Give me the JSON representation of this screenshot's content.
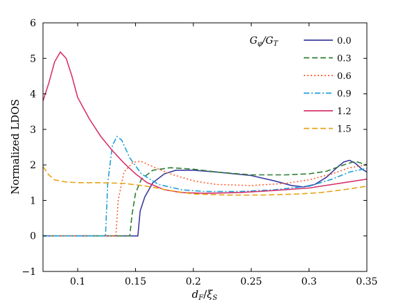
{
  "chart_data": {
    "type": "line",
    "title": "",
    "xlabel": "d_F / ξ_S",
    "ylabel": "Normalized LDOS",
    "xlim": [
      0.07,
      0.35
    ],
    "ylim": [
      -1,
      6
    ],
    "xticks": [
      0.1,
      0.15,
      0.2,
      0.25,
      0.3,
      0.35
    ],
    "xtick_labels": [
      "0.1",
      "0.15",
      "0.2",
      "0.25",
      "0.3",
      "0.35"
    ],
    "yticks": [
      -1,
      0,
      1,
      2,
      3,
      4,
      5,
      6
    ],
    "ytick_labels": [
      "−1",
      "0",
      "1",
      "2",
      "3",
      "4",
      "5",
      "6"
    ],
    "grid": false,
    "legend_title": "G_φ/G_T",
    "legend_position": "top-right",
    "series": [
      {
        "name": "0.0",
        "color": "#3a3aa0",
        "dash": "solid",
        "x": [
          0.07,
          0.152,
          0.154,
          0.158,
          0.165,
          0.175,
          0.185,
          0.2,
          0.22,
          0.25,
          0.27,
          0.285,
          0.295,
          0.305,
          0.315,
          0.325,
          0.33,
          0.335,
          0.34,
          0.345,
          0.35
        ],
        "y": [
          0,
          0,
          0.7,
          1.1,
          1.5,
          1.75,
          1.85,
          1.85,
          1.8,
          1.7,
          1.55,
          1.42,
          1.38,
          1.45,
          1.65,
          1.95,
          2.08,
          2.13,
          2.05,
          1.9,
          1.8
        ]
      },
      {
        "name": "0.3",
        "color": "#2e7d32",
        "dash": "dashed",
        "x": [
          0.07,
          0.145,
          0.147,
          0.15,
          0.155,
          0.165,
          0.18,
          0.2,
          0.22,
          0.25,
          0.28,
          0.3,
          0.315,
          0.33,
          0.34,
          0.35
        ],
        "y": [
          0,
          0,
          0.6,
          1.2,
          1.6,
          1.85,
          1.92,
          1.88,
          1.8,
          1.72,
          1.72,
          1.75,
          1.82,
          2.0,
          2.1,
          2.0
        ]
      },
      {
        "name": "0.6",
        "color": "#ff5a2a",
        "dash": "dotted",
        "x": [
          0.07,
          0.133,
          0.135,
          0.14,
          0.148,
          0.155,
          0.165,
          0.18,
          0.2,
          0.22,
          0.25,
          0.28,
          0.3,
          0.32,
          0.335,
          0.35
        ],
        "y": [
          0,
          0,
          1.0,
          1.8,
          2.08,
          2.1,
          1.95,
          1.75,
          1.55,
          1.45,
          1.42,
          1.48,
          1.58,
          1.75,
          1.92,
          2.0
        ]
      },
      {
        "name": "0.9",
        "color": "#1f9fd8",
        "dash": "dashdot",
        "x": [
          0.07,
          0.124,
          0.126,
          0.13,
          0.134,
          0.138,
          0.145,
          0.155,
          0.17,
          0.19,
          0.21,
          0.24,
          0.27,
          0.3,
          0.32,
          0.335,
          0.35
        ],
        "y": [
          0,
          0,
          1.5,
          2.55,
          2.8,
          2.7,
          2.2,
          1.75,
          1.45,
          1.3,
          1.25,
          1.25,
          1.3,
          1.4,
          1.6,
          1.8,
          1.9
        ]
      },
      {
        "name": "1.2",
        "color": "#d6336c",
        "dash": "solid",
        "x": [
          0.07,
          0.075,
          0.08,
          0.085,
          0.09,
          0.095,
          0.1,
          0.11,
          0.12,
          0.13,
          0.14,
          0.15,
          0.16,
          0.175,
          0.19,
          0.21,
          0.24,
          0.27,
          0.3,
          0.33,
          0.35
        ],
        "y": [
          3.8,
          4.3,
          4.9,
          5.18,
          5.0,
          4.5,
          3.9,
          3.3,
          2.8,
          2.4,
          2.05,
          1.75,
          1.5,
          1.3,
          1.22,
          1.2,
          1.22,
          1.28,
          1.35,
          1.5,
          1.6
        ]
      },
      {
        "name": "1.5",
        "color": "#e8a317",
        "dash": "dashed",
        "x": [
          0.07,
          0.075,
          0.08,
          0.09,
          0.1,
          0.12,
          0.14,
          0.16,
          0.18,
          0.2,
          0.23,
          0.26,
          0.29,
          0.31,
          0.33,
          0.35
        ],
        "y": [
          1.95,
          1.72,
          1.58,
          1.52,
          1.5,
          1.5,
          1.48,
          1.4,
          1.28,
          1.18,
          1.15,
          1.15,
          1.18,
          1.22,
          1.3,
          1.4
        ]
      }
    ]
  }
}
